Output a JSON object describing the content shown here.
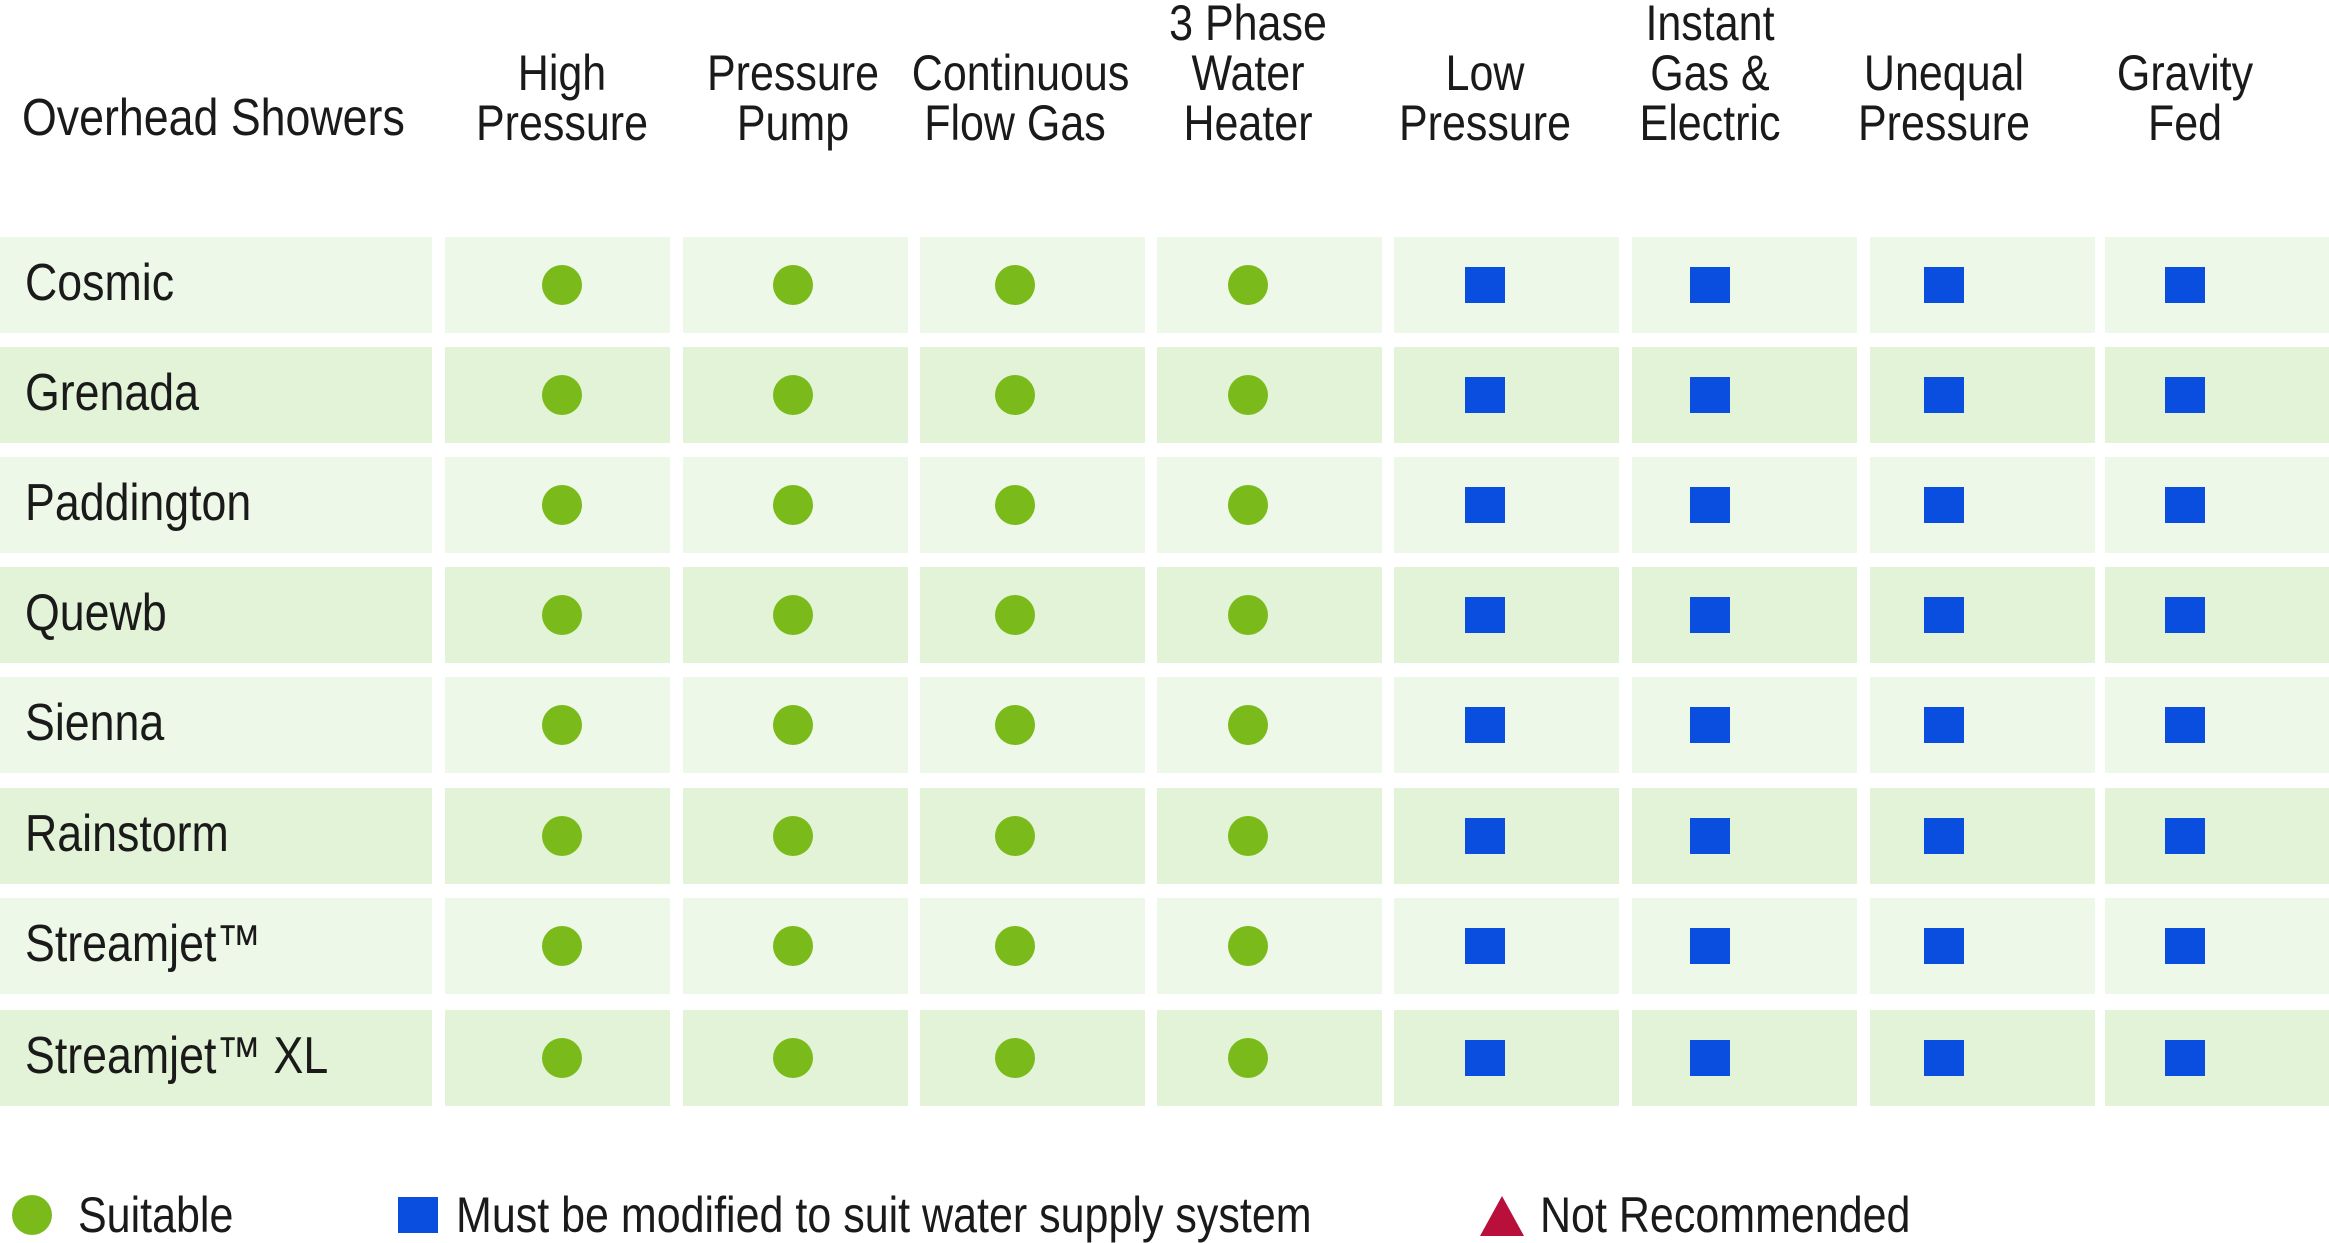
{
  "table": {
    "first_header": "Overhead Showers",
    "columns": [
      "High\nPressure",
      "Pressure\nPump",
      "Continuous\nFlow Gas",
      "3 Phase\nWater\nHeater",
      "Low\nPressure",
      "Instant\nGas &\nElectric",
      "Unequal\nPressure",
      "Gravity\nFed"
    ],
    "rows": [
      {
        "name": "Cosmic",
        "marks": [
          "suitable",
          "suitable",
          "suitable",
          "suitable",
          "modify",
          "modify",
          "modify",
          "modify"
        ]
      },
      {
        "name": "Grenada",
        "marks": [
          "suitable",
          "suitable",
          "suitable",
          "suitable",
          "modify",
          "modify",
          "modify",
          "modify"
        ]
      },
      {
        "name": "Paddington",
        "marks": [
          "suitable",
          "suitable",
          "suitable",
          "suitable",
          "modify",
          "modify",
          "modify",
          "modify"
        ]
      },
      {
        "name": "Quewb",
        "marks": [
          "suitable",
          "suitable",
          "suitable",
          "suitable",
          "modify",
          "modify",
          "modify",
          "modify"
        ]
      },
      {
        "name": "Sienna",
        "marks": [
          "suitable",
          "suitable",
          "suitable",
          "suitable",
          "modify",
          "modify",
          "modify",
          "modify"
        ]
      },
      {
        "name": "Rainstorm",
        "marks": [
          "suitable",
          "suitable",
          "suitable",
          "suitable",
          "modify",
          "modify",
          "modify",
          "modify"
        ]
      },
      {
        "name": "Streamjet™",
        "marks": [
          "suitable",
          "suitable",
          "suitable",
          "suitable",
          "modify",
          "modify",
          "modify",
          "modify"
        ]
      },
      {
        "name": "Streamjet™ XL",
        "marks": [
          "suitable",
          "suitable",
          "suitable",
          "suitable",
          "modify",
          "modify",
          "modify",
          "modify"
        ]
      }
    ]
  },
  "legend": {
    "suitable": "Suitable",
    "modify": "Must be modified to suit water supply system",
    "not_recommended": "Not Recommended"
  },
  "colors": {
    "suitable": "#7aba1a",
    "modify": "#0a4ee0",
    "not_recommended": "#b8103a",
    "row_light": "#eef8e8",
    "row_dark": "#e2f3d7"
  }
}
